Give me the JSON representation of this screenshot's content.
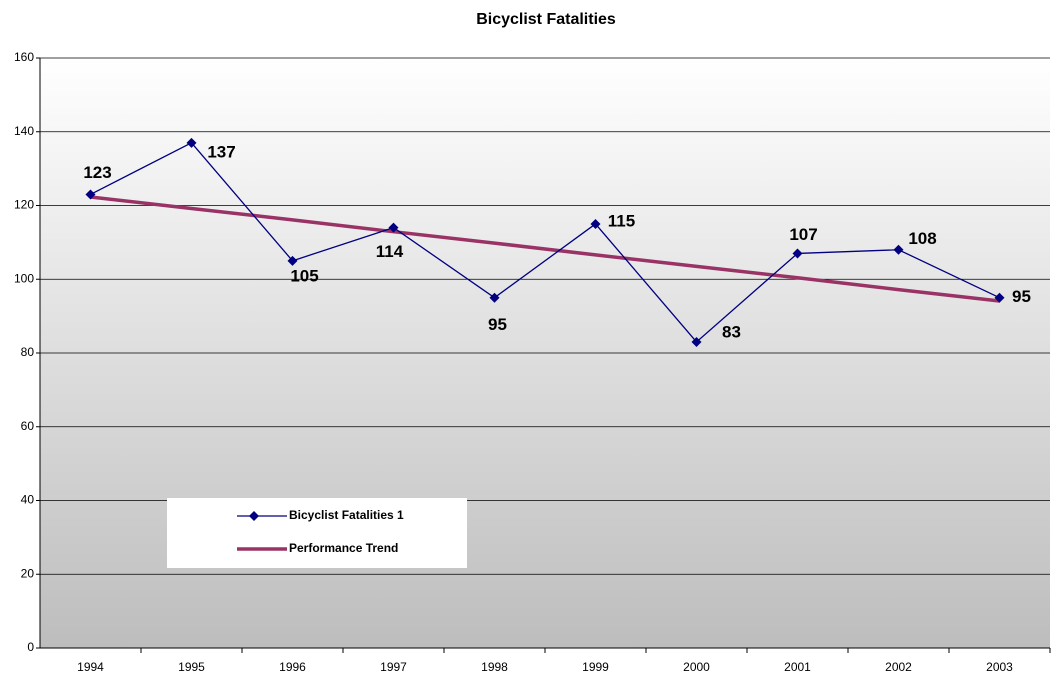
{
  "chart_data": {
    "type": "line",
    "title": "Bicyclist Fatalities",
    "categories": [
      "1994",
      "1995",
      "1996",
      "1997",
      "1998",
      "1999",
      "2000",
      "2001",
      "2002",
      "2003"
    ],
    "series": [
      {
        "name": "Bicyclist Fatalities 1",
        "color": "#000080",
        "marker": "diamond",
        "data_labels": true,
        "values": [
          123,
          137,
          105,
          114,
          95,
          115,
          83,
          107,
          108,
          95
        ]
      },
      {
        "name": "Performance Trend",
        "color": "#993366",
        "marker": "none",
        "data_labels": false,
        "values": [
          122.3,
          119.2,
          116.1,
          112.9,
          109.8,
          106.6,
          103.5,
          100.4,
          97.2,
          94.1
        ]
      }
    ],
    "ylim": [
      0,
      160
    ],
    "yticks": [
      0,
      20,
      40,
      60,
      80,
      100,
      120,
      140,
      160
    ],
    "grid": true,
    "legend": "lower left"
  }
}
